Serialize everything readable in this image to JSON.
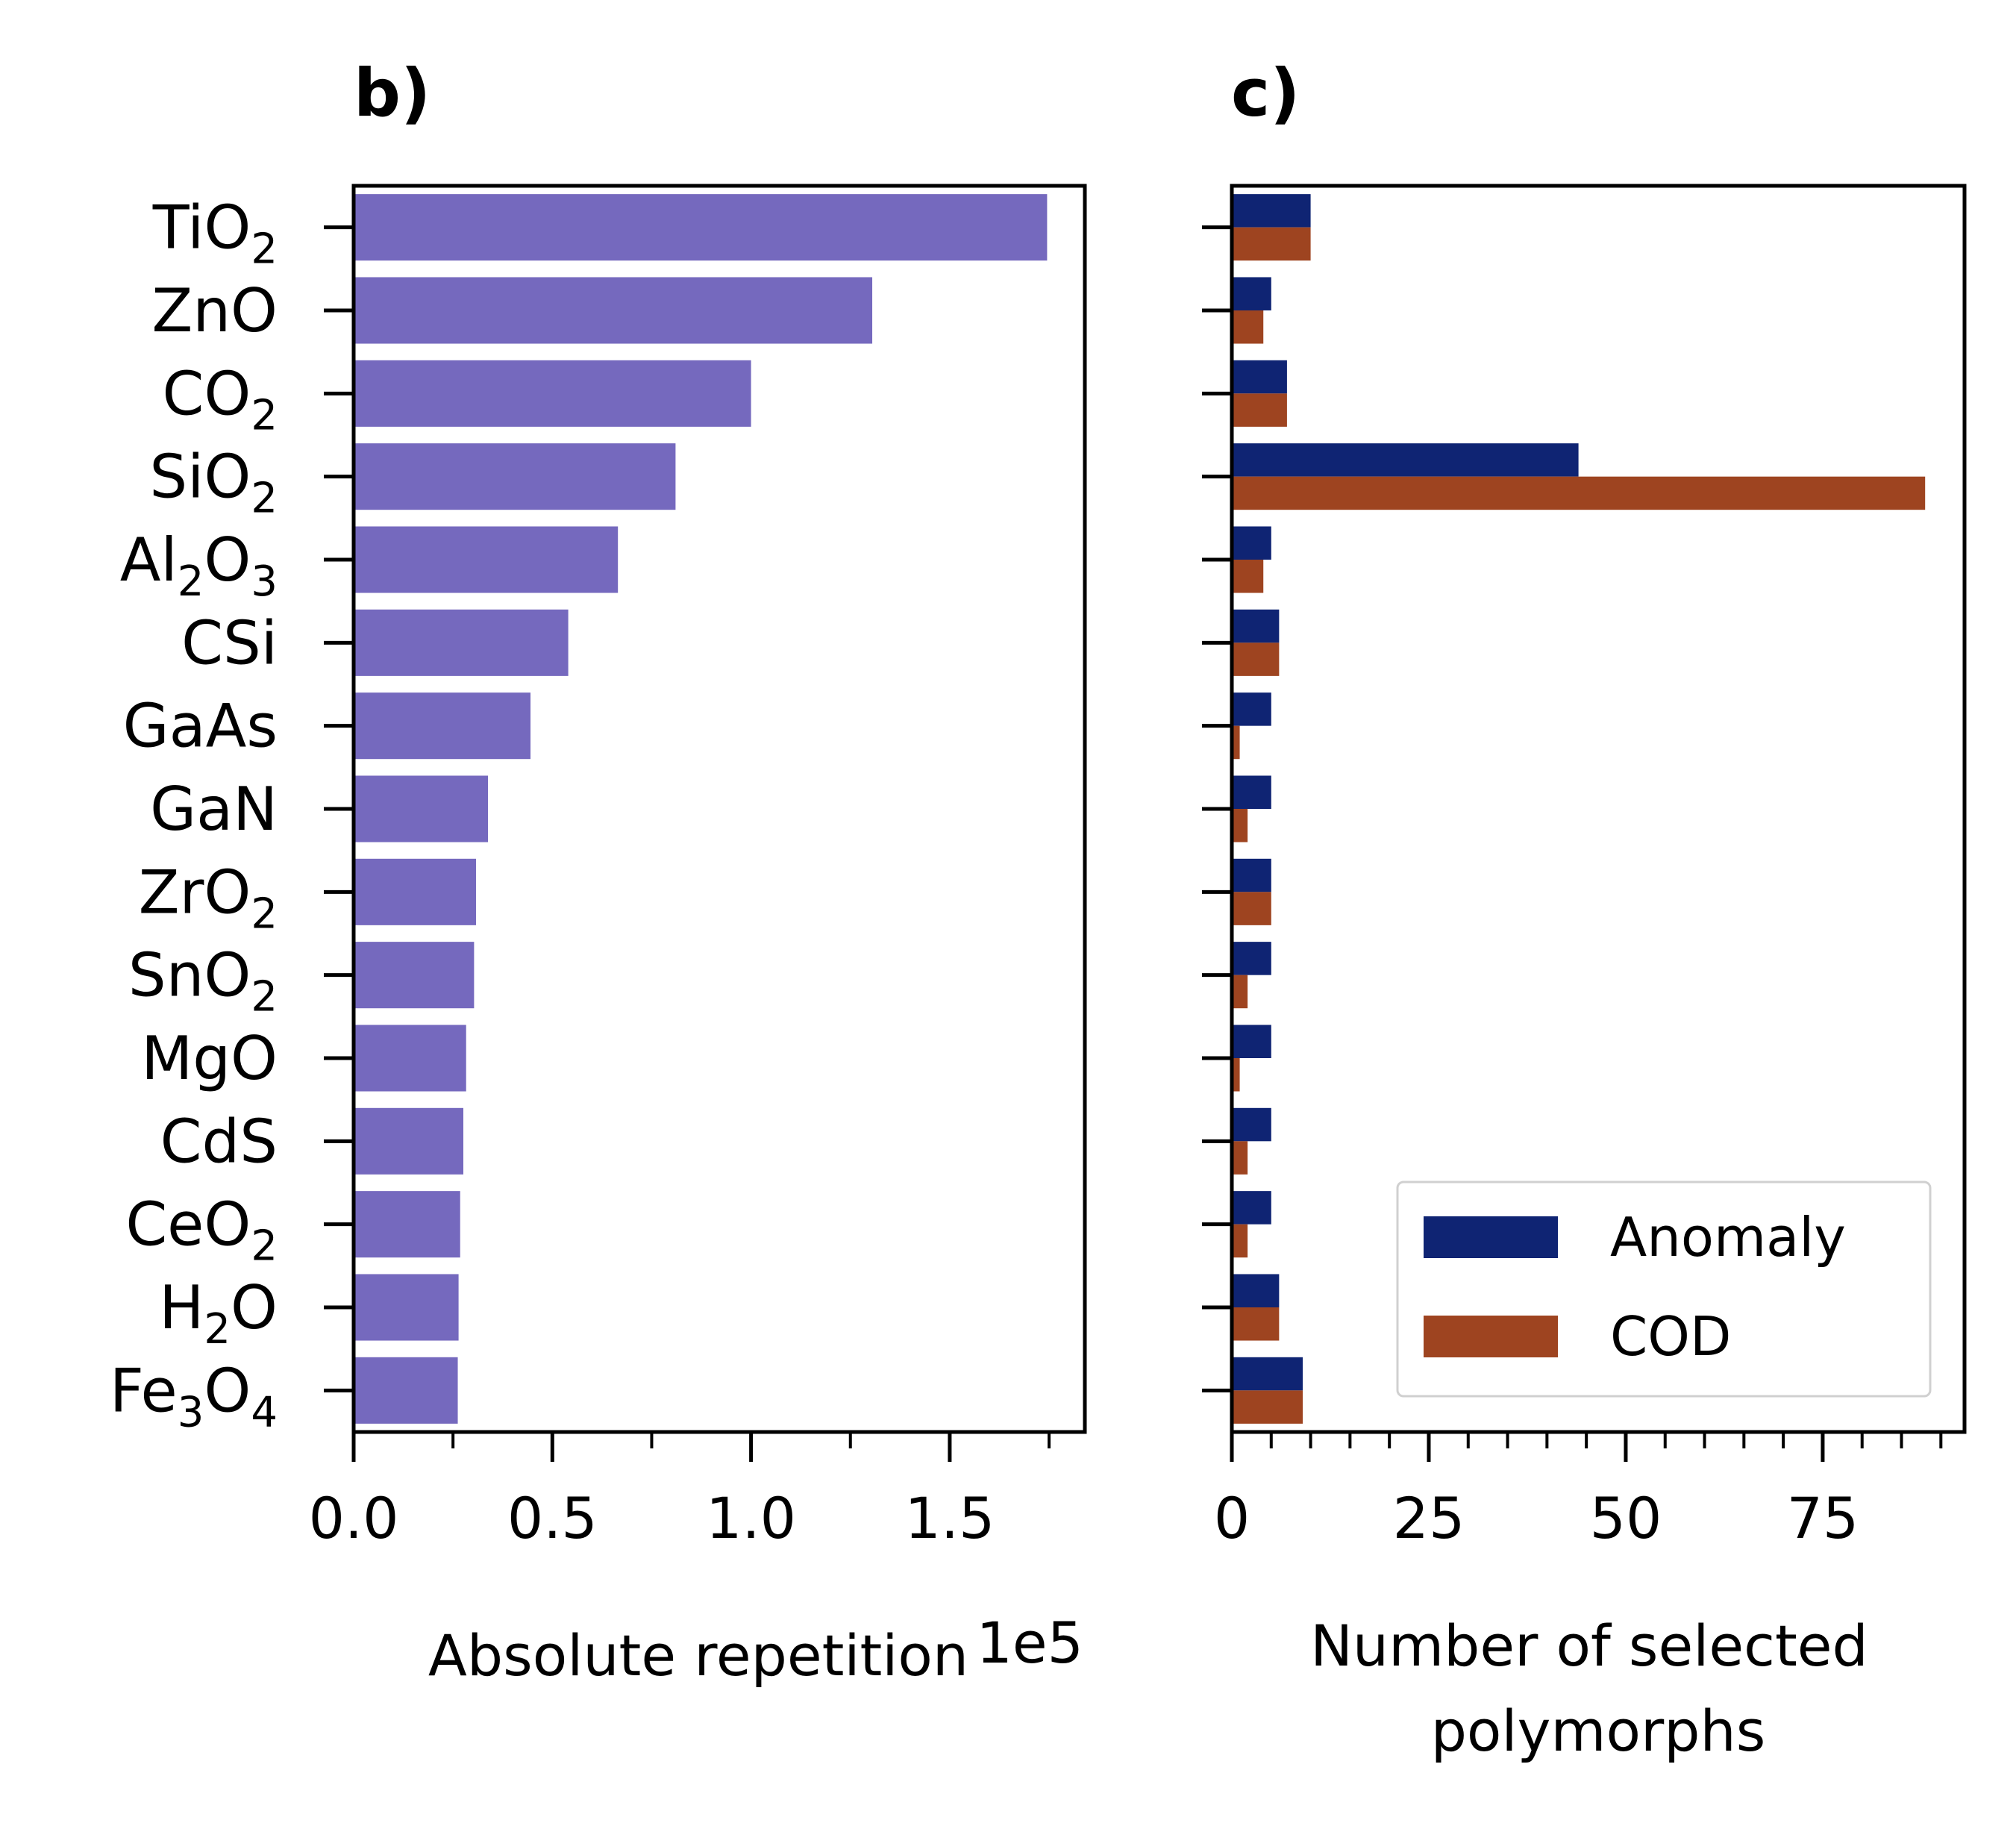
{
  "chart_data": [
    {
      "type": "bar",
      "orientation": "horizontal",
      "panel_label": "b)",
      "categories": [
        {
          "base": "TiO",
          "sub": "2"
        },
        {
          "base": "ZnO"
        },
        {
          "base": "CO",
          "sub": "2"
        },
        {
          "base": "SiO",
          "sub": "2"
        },
        {
          "base": "Al",
          "sub": "2",
          "base2": "O",
          "sub2": "3"
        },
        {
          "base": "CSi"
        },
        {
          "base": "GaAs"
        },
        {
          "base": "GaN"
        },
        {
          "base": "ZrO",
          "sub": "2"
        },
        {
          "base": "SnO",
          "sub": "2"
        },
        {
          "base": "MgO"
        },
        {
          "base": "CdS"
        },
        {
          "base": "CeO",
          "sub": "2"
        },
        {
          "base": "H",
          "sub": "2",
          "base2": "O"
        },
        {
          "base": "Fe",
          "sub": "3",
          "base2": "O",
          "sub2": "4"
        }
      ],
      "values": [
        174500,
        130500,
        100000,
        81000,
        66500,
        54000,
        44500,
        33800,
        30800,
        30300,
        28300,
        27600,
        26800,
        26400,
        26200
      ],
      "xlabel": "Absolute repetition",
      "x_offset_text": "1e5",
      "xlim": [
        0,
        184000
      ],
      "xticks": [
        0,
        50000,
        100000,
        150000
      ],
      "xtick_labels": [
        "0.0",
        "0.5",
        "1.0",
        "1.5"
      ],
      "x_minor_step": 25000,
      "bar_color": "#7569be"
    },
    {
      "type": "bar",
      "orientation": "horizontal",
      "grouped": true,
      "panel_label": "c)",
      "series": [
        {
          "name": "Anomaly",
          "color": "#0f2473",
          "values": [
            10,
            5,
            7,
            44,
            5,
            6,
            5,
            5,
            5,
            5,
            5,
            5,
            5,
            6,
            9
          ]
        },
        {
          "name": "COD",
          "color": "#9e4420",
          "values": [
            10,
            4,
            7,
            88,
            4,
            6,
            1,
            2,
            5,
            2,
            1,
            2,
            2,
            6,
            9
          ]
        }
      ],
      "xlabel_lines": [
        "Number of selected",
        "polymorphs"
      ],
      "xlim": [
        0,
        93
      ],
      "xticks": [
        0,
        25,
        50,
        75
      ],
      "xtick_labels": [
        "0",
        "25",
        "50",
        "75"
      ],
      "x_minor_step": 5,
      "legend_position": "lower right"
    }
  ]
}
